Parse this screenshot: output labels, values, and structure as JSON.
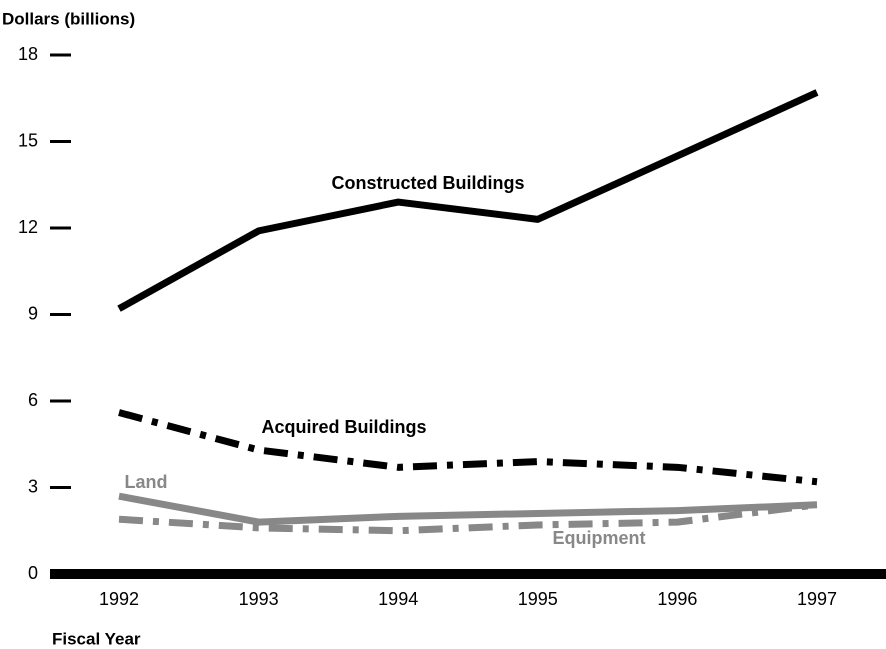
{
  "chart_data": {
    "type": "line",
    "y_label": "Dollars (billions)",
    "x_label": "Fiscal Year",
    "categories": [
      "1992",
      "1993",
      "1994",
      "1995",
      "1996",
      "1997"
    ],
    "series": [
      {
        "name": "Constructed Buildings",
        "color": "#000000",
        "style": "solid",
        "values": [
          9.2,
          11.9,
          12.9,
          12.3,
          14.5,
          16.7
        ]
      },
      {
        "name": "Acquired Buildings",
        "color": "#000000",
        "style": "dashdot",
        "values": [
          5.6,
          4.3,
          3.7,
          3.9,
          3.7,
          3.2
        ]
      },
      {
        "name": "Land",
        "color": "#888888",
        "style": "solid",
        "values": [
          2.7,
          1.8,
          2.0,
          2.1,
          2.2,
          2.4
        ]
      },
      {
        "name": "Equipment",
        "color": "#888888",
        "style": "dashdot",
        "values": [
          1.9,
          1.6,
          1.5,
          1.7,
          1.8,
          2.4
        ]
      }
    ],
    "ylim": [
      0,
      18
    ],
    "yticks": [
      0,
      3,
      6,
      9,
      12,
      15,
      18
    ],
    "grid": false
  }
}
